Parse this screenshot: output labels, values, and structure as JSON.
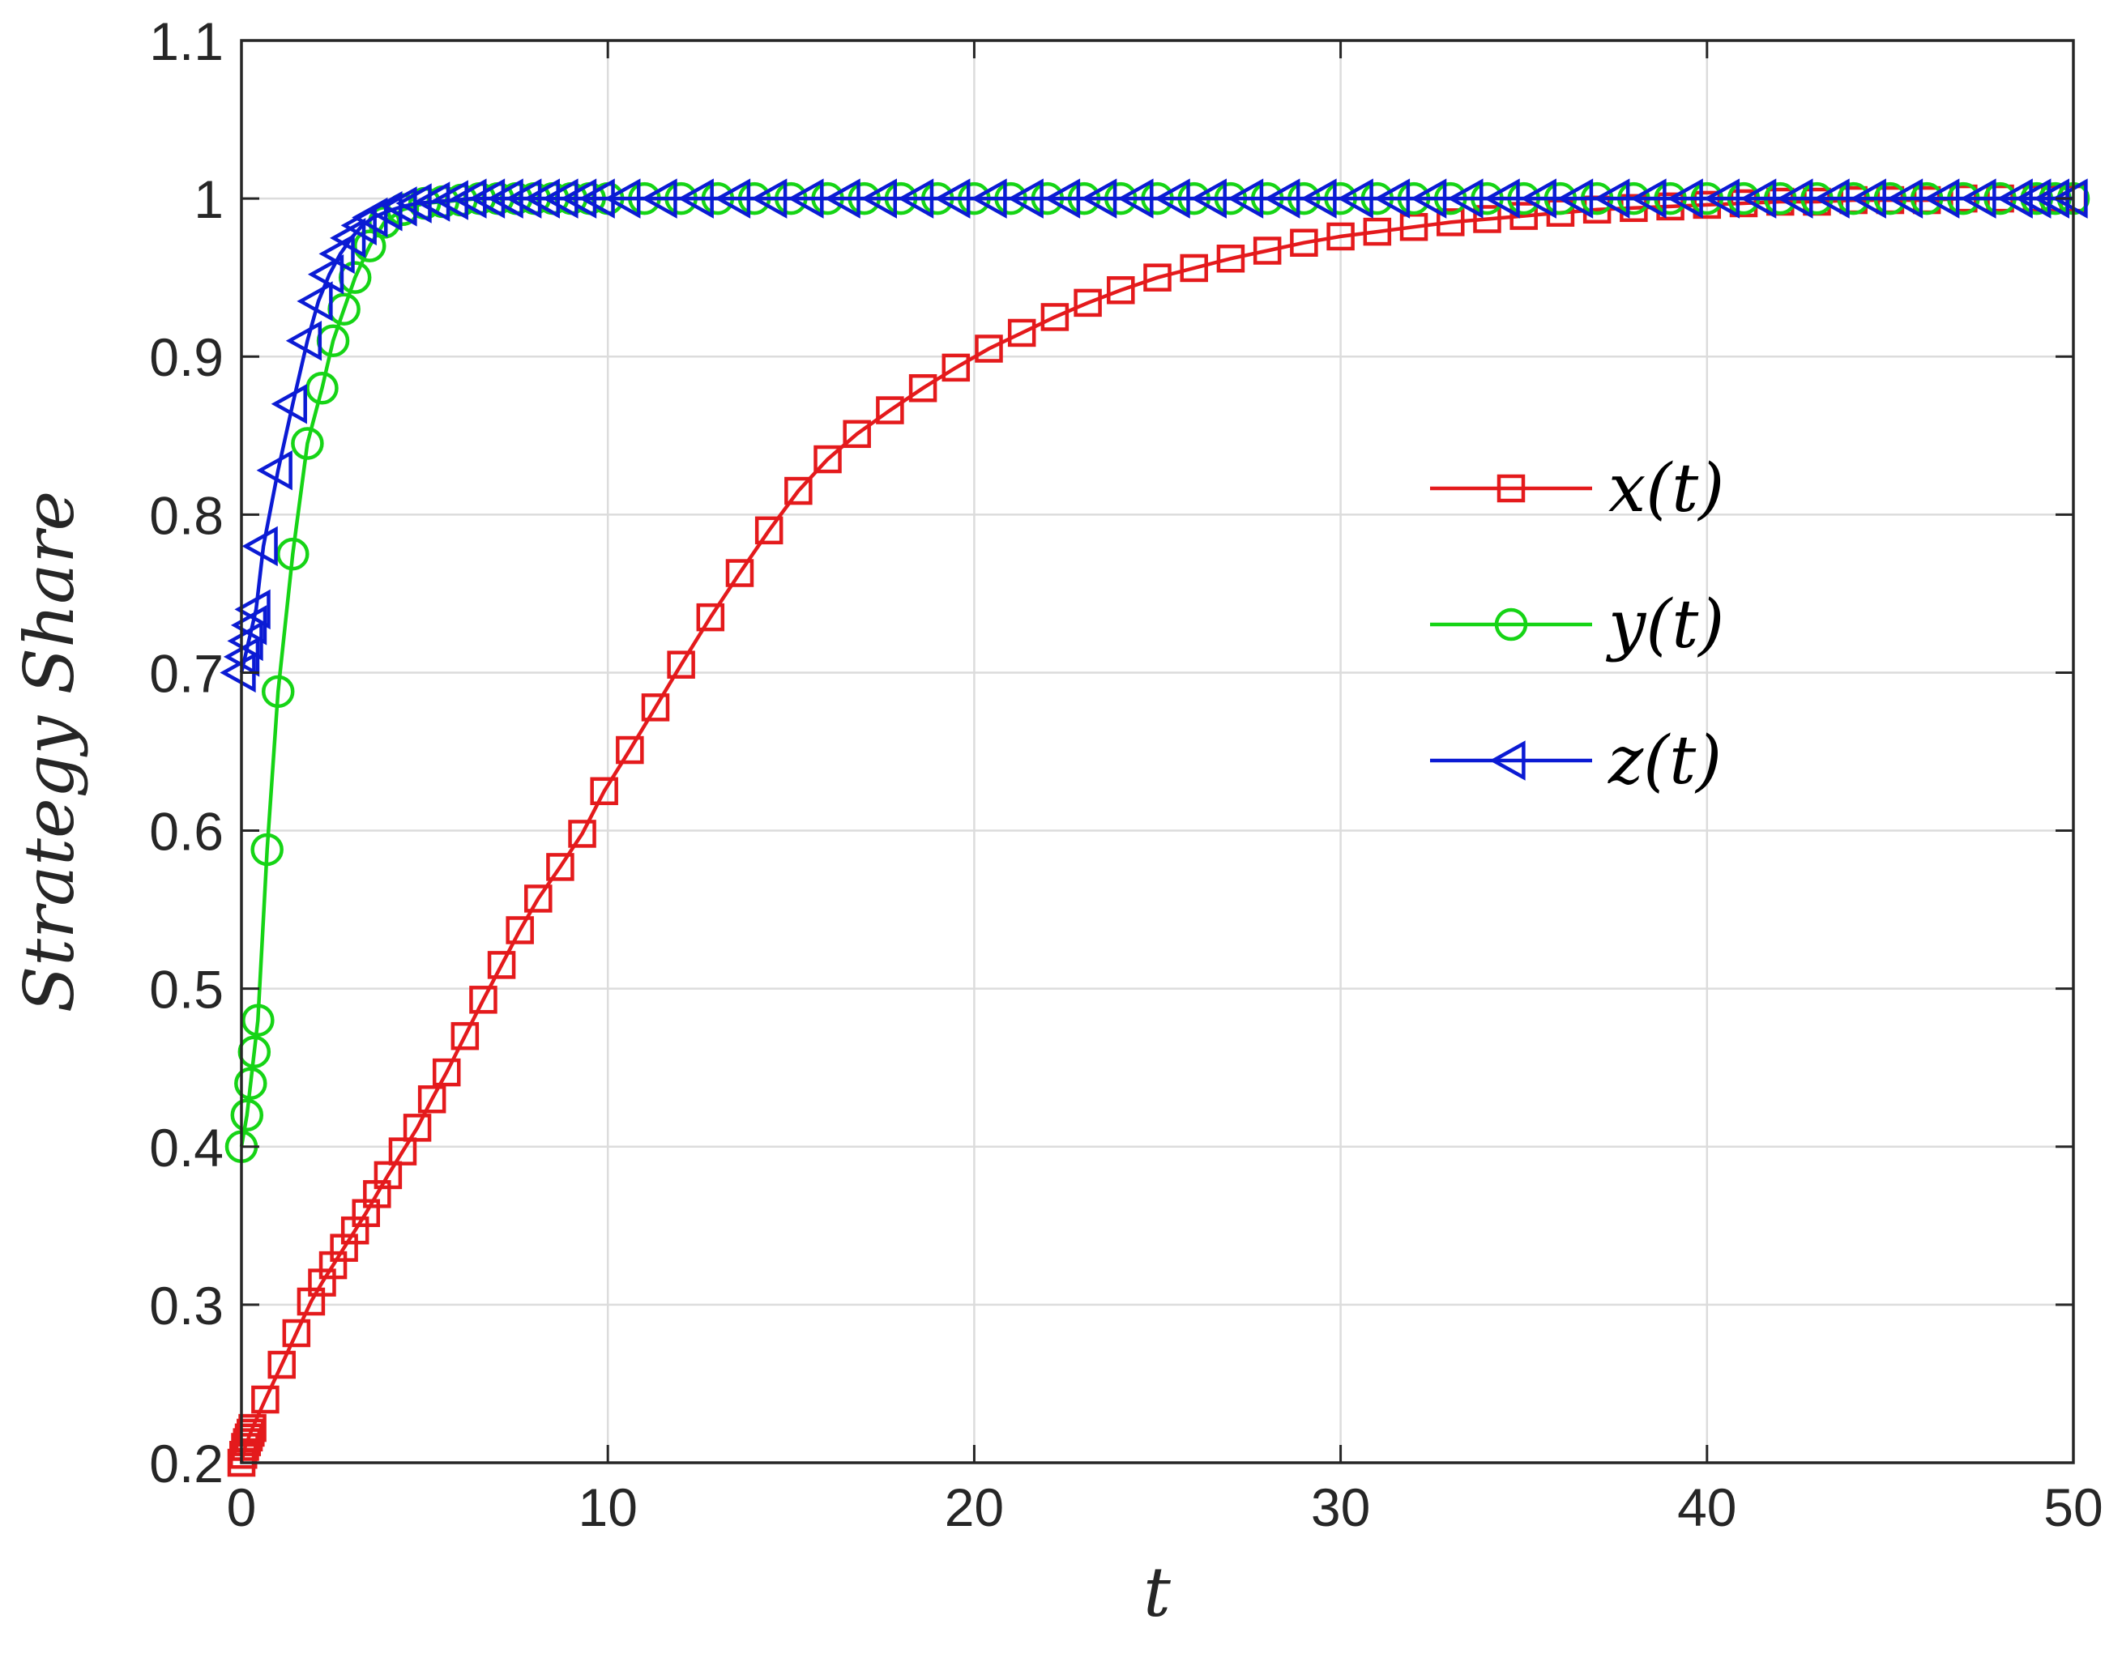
{
  "chart_data": {
    "type": "line",
    "xlabel": "t",
    "ylabel": "Strategy Share",
    "xlim": [
      0,
      50
    ],
    "ylim": [
      0.2,
      1.1
    ],
    "xticks": [
      "0",
      "10",
      "20",
      "30",
      "40",
      "50"
    ],
    "yticks": [
      "0.2",
      "0.3",
      "0.4",
      "0.5",
      "0.6",
      "0.7",
      "0.8",
      "0.9",
      "1",
      "1.1"
    ],
    "grid": true,
    "legend_position": "right",
    "series": [
      {
        "name": "x(t)",
        "color": "#e41a1c",
        "marker": "square",
        "x": [
          0,
          0.05,
          0.1,
          0.15,
          0.2,
          0.25,
          0.3,
          0.65,
          1.1,
          1.5,
          1.9,
          2.2,
          2.5,
          2.8,
          3.1,
          3.4,
          3.7,
          4.0,
          4.4,
          4.8,
          5.2,
          5.6,
          6.1,
          6.6,
          7.1,
          7.6,
          8.1,
          8.7,
          9.3,
          9.9,
          10.6,
          11.3,
          12.0,
          12.8,
          13.6,
          14.4,
          15.2,
          16.0,
          16.8,
          17.7,
          18.6,
          19.5,
          20.4,
          21.3,
          22.2,
          23.1,
          24.0,
          25.0,
          26.0,
          27.0,
          28.0,
          29.0,
          30.0,
          31.0,
          32.0,
          33.0,
          34.0,
          35.0,
          36.0,
          37.0,
          38.0,
          39.0,
          40.0,
          41.0,
          42.0,
          43.0,
          44.0,
          45.0,
          46.0,
          47.0,
          48.0,
          49.0,
          49.5,
          50.0
        ],
        "values": [
          0.2,
          0.205,
          0.21,
          0.213,
          0.216,
          0.219,
          0.222,
          0.24,
          0.262,
          0.282,
          0.302,
          0.314,
          0.325,
          0.336,
          0.347,
          0.358,
          0.37,
          0.382,
          0.397,
          0.412,
          0.43,
          0.447,
          0.47,
          0.493,
          0.515,
          0.537,
          0.557,
          0.577,
          0.598,
          0.625,
          0.651,
          0.678,
          0.705,
          0.735,
          0.763,
          0.79,
          0.815,
          0.835,
          0.851,
          0.866,
          0.88,
          0.893,
          0.905,
          0.915,
          0.925,
          0.934,
          0.942,
          0.95,
          0.956,
          0.962,
          0.967,
          0.972,
          0.976,
          0.979,
          0.982,
          0.985,
          0.987,
          0.989,
          0.991,
          0.993,
          0.994,
          0.995,
          0.996,
          0.997,
          0.998,
          0.998,
          0.999,
          0.999,
          0.999,
          1.0,
          1.0,
          1.0,
          1.0,
          1.0
        ]
      },
      {
        "name": "y(t)",
        "color": "#16d416",
        "marker": "circle",
        "x": [
          0,
          0.15,
          0.25,
          0.35,
          0.45,
          0.7,
          1.0,
          1.4,
          1.8,
          2.2,
          2.5,
          2.8,
          3.1,
          3.5,
          3.9,
          4.4,
          5.0,
          5.5,
          6.0,
          6.5,
          7.0,
          7.5,
          8.0,
          8.5,
          9.0,
          9.5,
          10.0,
          11.0,
          12.0,
          13.0,
          14.0,
          15.0,
          16.0,
          17.0,
          18.0,
          19.0,
          20.0,
          21.0,
          22.0,
          23.0,
          24.0,
          25.0,
          26.0,
          27.0,
          28.0,
          29.0,
          30.0,
          31.0,
          32.0,
          33.0,
          34.0,
          35.0,
          36.0,
          37.0,
          38.0,
          39.0,
          40.0,
          41.0,
          42.0,
          43.0,
          44.0,
          45.0,
          46.0,
          47.0,
          48.0,
          49.0,
          49.5,
          50.0
        ],
        "values": [
          0.4,
          0.42,
          0.44,
          0.46,
          0.48,
          0.588,
          0.688,
          0.775,
          0.845,
          0.88,
          0.91,
          0.93,
          0.95,
          0.97,
          0.985,
          0.993,
          0.997,
          0.998,
          0.999,
          1.0,
          1.0,
          1.0,
          1.0,
          1.0,
          1.0,
          1.0,
          1.0,
          1.0,
          1.0,
          1.0,
          1.0,
          1.0,
          1.0,
          1.0,
          1.0,
          1.0,
          1.0,
          1.0,
          1.0,
          1.0,
          1.0,
          1.0,
          1.0,
          1.0,
          1.0,
          1.0,
          1.0,
          1.0,
          1.0,
          1.0,
          1.0,
          1.0,
          1.0,
          1.0,
          1.0,
          1.0,
          1.0,
          1.0,
          1.0,
          1.0,
          1.0,
          1.0,
          1.0,
          1.0,
          1.0,
          1.0,
          1.0,
          1.0
        ]
      },
      {
        "name": "z(t)",
        "color": "#0b1bd4",
        "marker": "triangle-left",
        "x": [
          0,
          0.1,
          0.2,
          0.3,
          0.4,
          0.6,
          1.0,
          1.4,
          1.8,
          2.1,
          2.4,
          2.7,
          3.0,
          3.3,
          3.6,
          4.0,
          4.4,
          4.8,
          5.3,
          5.8,
          6.3,
          6.8,
          7.3,
          7.8,
          8.3,
          8.8,
          9.3,
          9.8,
          10.5,
          11.5,
          12.5,
          13.5,
          14.5,
          15.5,
          16.5,
          17.5,
          18.5,
          19.5,
          20.5,
          21.5,
          22.5,
          23.5,
          24.5,
          25.5,
          26.5,
          27.5,
          28.5,
          29.5,
          30.5,
          31.5,
          32.5,
          33.5,
          34.5,
          35.5,
          36.5,
          37.5,
          38.5,
          39.5,
          40.5,
          41.5,
          42.5,
          43.5,
          44.5,
          45.5,
          46.5,
          47.5,
          48.5,
          49.0,
          49.5,
          50.0
        ],
        "values": [
          0.7,
          0.71,
          0.72,
          0.73,
          0.74,
          0.78,
          0.828,
          0.87,
          0.91,
          0.935,
          0.952,
          0.965,
          0.975,
          0.983,
          0.988,
          0.992,
          0.995,
          0.997,
          0.998,
          0.999,
          1.0,
          1.0,
          1.0,
          1.0,
          1.0,
          1.0,
          1.0,
          1.0,
          1.0,
          1.0,
          1.0,
          1.0,
          1.0,
          1.0,
          1.0,
          1.0,
          1.0,
          1.0,
          1.0,
          1.0,
          1.0,
          1.0,
          1.0,
          1.0,
          1.0,
          1.0,
          1.0,
          1.0,
          1.0,
          1.0,
          1.0,
          1.0,
          1.0,
          1.0,
          1.0,
          1.0,
          1.0,
          1.0,
          1.0,
          1.0,
          1.0,
          1.0,
          1.0,
          1.0,
          1.0,
          1.0,
          1.0,
          1.0,
          1.0,
          1.0
        ]
      }
    ]
  }
}
